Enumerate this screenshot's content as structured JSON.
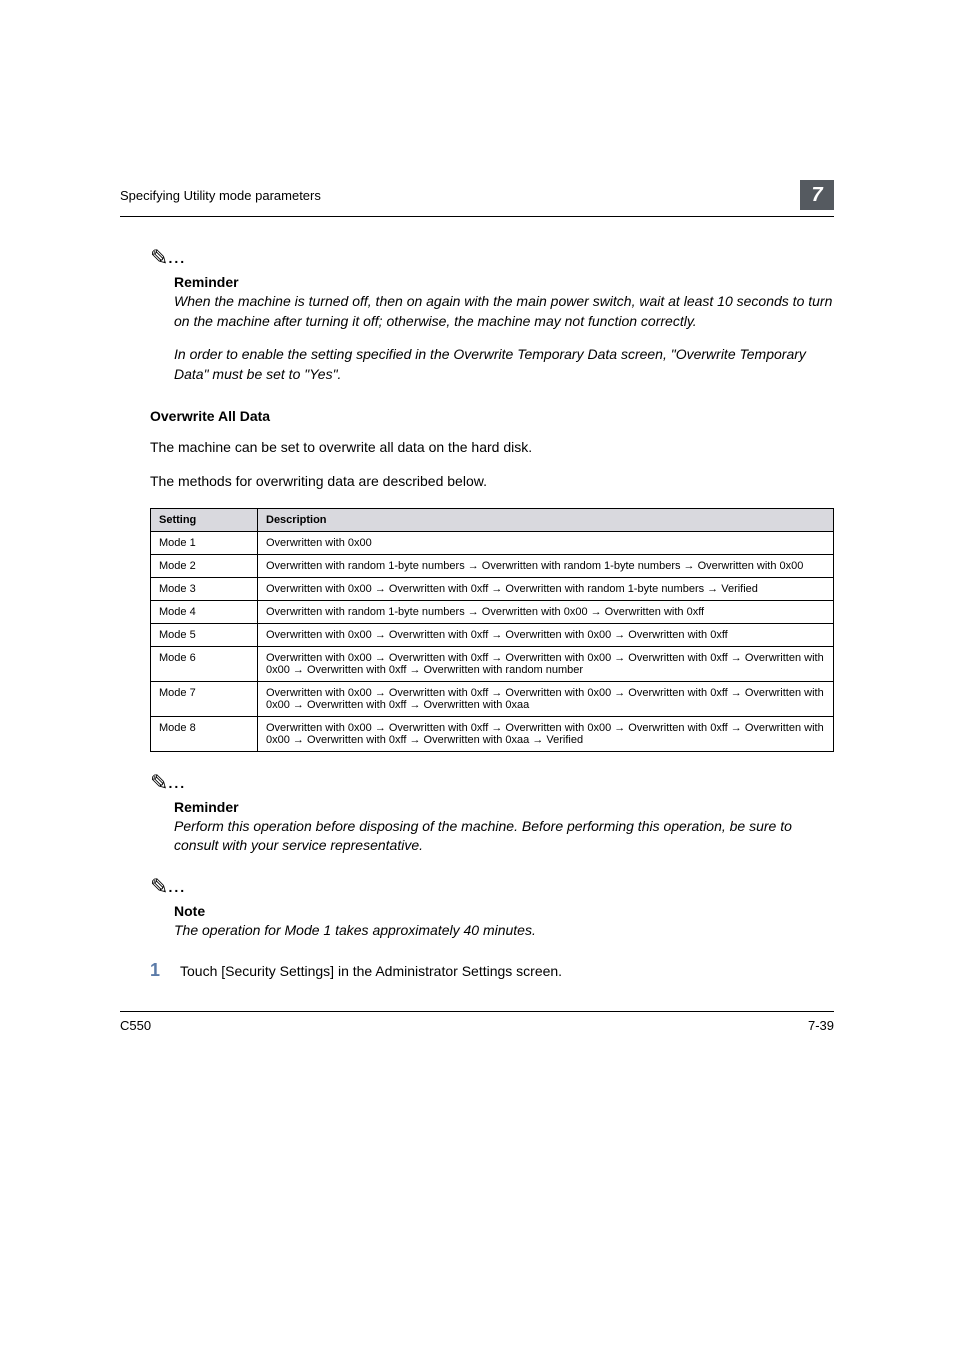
{
  "running_head": {
    "text": "Specifying Utility mode parameters",
    "section_number": "7"
  },
  "reminder1": {
    "heading": "Reminder",
    "para1": "When the machine is turned off, then on again with the main power switch, wait at least 10 seconds to turn on the machine after turning it off; otherwise, the machine may not function correctly.",
    "para2": "In order to enable the setting specified in the Overwrite Temporary Data screen, \"Overwrite Temporary Data\" must be set to \"Yes\"."
  },
  "overwrite_section": {
    "heading": "Overwrite All Data",
    "intro1": "The machine can be set to overwrite all data on the hard disk.",
    "intro2": "The methods for overwriting data are described below."
  },
  "modes_table": {
    "col1": "Setting",
    "col2": "Description",
    "rows": [
      {
        "setting": "Mode 1",
        "desc": "Overwritten with 0x00"
      },
      {
        "setting": "Mode 2",
        "desc": "Overwritten with random 1-byte numbers → Overwritten with random 1-byte numbers → Overwritten with 0x00"
      },
      {
        "setting": "Mode 3",
        "desc": "Overwritten with 0x00 → Overwritten with 0xff → Overwritten with random 1-byte numbers → Verified"
      },
      {
        "setting": "Mode 4",
        "desc": "Overwritten with random 1-byte numbers → Overwritten with 0x00 → Overwritten with 0xff"
      },
      {
        "setting": "Mode 5",
        "desc": "Overwritten with 0x00 → Overwritten with 0xff → Overwritten with 0x00 → Overwritten with 0xff"
      },
      {
        "setting": "Mode 6",
        "desc": "Overwritten with 0x00 → Overwritten with 0xff → Overwritten with 0x00 → Overwritten with 0xff → Overwritten with 0x00 → Overwritten with 0xff → Overwritten with random number"
      },
      {
        "setting": "Mode 7",
        "desc": "Overwritten with 0x00 → Overwritten with 0xff → Overwritten with 0x00 → Overwritten with 0xff → Overwritten with 0x00 → Overwritten with 0xff → Overwritten with 0xaa"
      },
      {
        "setting": "Mode 8",
        "desc": "Overwritten with 0x00 → Overwritten with 0xff → Overwritten with 0x00 → Overwritten with 0xff → Overwritten with 0x00 → Overwritten with 0xff → Overwritten with 0xaa → Verified"
      }
    ]
  },
  "reminder2": {
    "heading": "Reminder",
    "body": "Perform this operation before disposing of the machine. Before performing this operation, be sure to consult with your service representative."
  },
  "note1": {
    "heading": "Note",
    "body": "The operation for Mode 1 takes approximately 40 minutes."
  },
  "step1": {
    "num": "1",
    "text": "Touch [Security Settings] in the Administrator Settings screen."
  },
  "footer": {
    "left": "C550",
    "right": "7-39"
  }
}
